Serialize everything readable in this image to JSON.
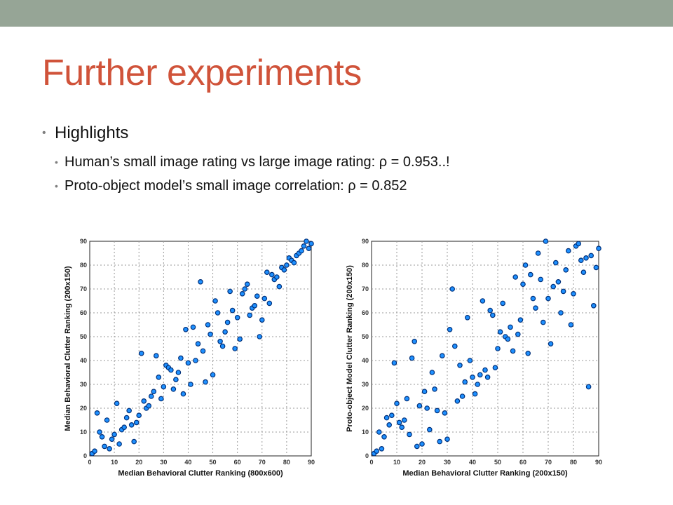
{
  "slide": {
    "title": "Further experiments",
    "bullets": [
      {
        "text": "Highlights",
        "sub": [
          "Human’s small image rating vs large image rating: ρ = 0.953..!",
          "Proto-object model’s small image correlation: ρ = 0.852"
        ]
      }
    ]
  },
  "theme": {
    "title_color": "#d0533a",
    "bar_color": "#96a596",
    "point_color": "#1e90ff",
    "point_edge_color": "#00307a"
  },
  "chart_data": [
    {
      "type": "scatter",
      "title": "",
      "xlabel": "Median Behavioral Clutter Ranking (800x600)",
      "ylabel": "Median Behavioral Clutter Ranking (200x150)",
      "xlim": [
        0,
        90
      ],
      "ylim": [
        0,
        90
      ],
      "xticks": [
        0,
        10,
        20,
        30,
        40,
        50,
        60,
        70,
        80,
        90
      ],
      "yticks": [
        0,
        10,
        20,
        30,
        40,
        50,
        60,
        70,
        80,
        90
      ],
      "grid": true,
      "x": [
        1,
        2,
        3,
        4,
        5,
        6,
        7,
        8,
        9,
        10,
        11,
        12,
        13,
        14,
        15,
        16,
        17,
        18,
        19,
        20,
        21,
        22,
        23,
        24,
        25,
        26,
        27,
        28,
        29,
        30,
        31,
        32,
        33,
        34,
        35,
        36,
        37,
        38,
        39,
        40,
        41,
        42,
        43,
        44,
        45,
        46,
        47,
        48,
        49,
        50,
        51,
        52,
        53,
        54,
        55,
        56,
        57,
        58,
        59,
        60,
        61,
        62,
        63,
        64,
        65,
        66,
        67,
        68,
        69,
        70,
        71,
        72,
        73,
        74,
        75,
        76,
        77,
        78,
        79,
        80,
        81,
        82,
        83,
        84,
        85,
        86,
        87,
        88,
        89,
        90
      ],
      "y": [
        1,
        2,
        18,
        10,
        8,
        4,
        15,
        3,
        7,
        9,
        22,
        5,
        11,
        12,
        16,
        19,
        13,
        6,
        14,
        17,
        43,
        23,
        20,
        21,
        25,
        27,
        42,
        33,
        24,
        29,
        38,
        37,
        36,
        28,
        32,
        35,
        41,
        26,
        53,
        39,
        30,
        54,
        40,
        47,
        73,
        44,
        31,
        55,
        51,
        34,
        65,
        60,
        48,
        46,
        52,
        56,
        69,
        61,
        45,
        58,
        49,
        68,
        70,
        72,
        59,
        62,
        63,
        67,
        50,
        57,
        66,
        77,
        64,
        76,
        74,
        75,
        71,
        79,
        78,
        80,
        83,
        82,
        81,
        84,
        85,
        86,
        88,
        90,
        87,
        89
      ]
    },
    {
      "type": "scatter",
      "title": "",
      "xlabel": "Median Behavioral Clutter Ranking (200x150)",
      "ylabel": "Proto-object Model Clutter Ranking (200x150)",
      "xlim": [
        0,
        90
      ],
      "ylim": [
        0,
        90
      ],
      "xticks": [
        0,
        10,
        20,
        30,
        40,
        50,
        60,
        70,
        80,
        90
      ],
      "yticks": [
        0,
        10,
        20,
        30,
        40,
        50,
        60,
        70,
        80,
        90
      ],
      "grid": true,
      "x": [
        1,
        2,
        3,
        4,
        5,
        6,
        7,
        8,
        9,
        10,
        11,
        12,
        13,
        14,
        15,
        16,
        17,
        18,
        19,
        20,
        21,
        22,
        23,
        24,
        25,
        26,
        27,
        28,
        29,
        30,
        31,
        32,
        33,
        34,
        35,
        36,
        37,
        38,
        39,
        40,
        41,
        42,
        43,
        44,
        45,
        46,
        47,
        48,
        49,
        50,
        51,
        52,
        53,
        54,
        55,
        56,
        57,
        58,
        59,
        60,
        61,
        62,
        63,
        64,
        65,
        66,
        67,
        68,
        69,
        70,
        71,
        72,
        73,
        74,
        75,
        76,
        77,
        78,
        79,
        80,
        81,
        82,
        83,
        84,
        85,
        86,
        87,
        88,
        89,
        90
      ],
      "y": [
        1,
        2,
        10,
        3,
        8,
        16,
        13,
        17,
        39,
        22,
        14,
        12,
        15,
        24,
        9,
        41,
        48,
        4,
        21,
        5,
        27,
        20,
        11,
        35,
        28,
        19,
        6,
        42,
        18,
        7,
        53,
        70,
        46,
        23,
        38,
        25,
        31,
        58,
        40,
        33,
        26,
        30,
        34,
        65,
        36,
        33,
        61,
        59,
        37,
        45,
        52,
        64,
        50,
        49,
        54,
        44,
        75,
        51,
        57,
        72,
        80,
        43,
        76,
        66,
        62,
        85,
        74,
        56,
        90,
        66,
        47,
        71,
        81,
        73,
        60,
        69,
        78,
        86,
        55,
        68,
        88,
        89,
        82,
        77,
        83,
        29,
        84,
        63,
        79,
        87
      ]
    }
  ]
}
